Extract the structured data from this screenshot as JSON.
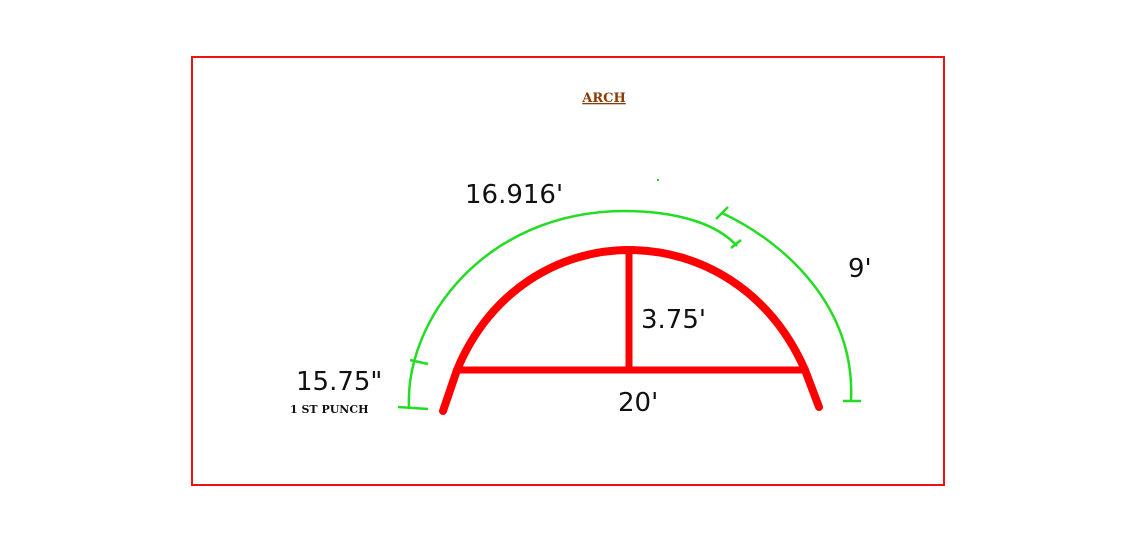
{
  "title": "ARCH",
  "labels": {
    "arc_length": "16.916'",
    "segment_length": "9'",
    "rise": "3.75'",
    "span": "20'",
    "first_punch_distance": "15.75\"",
    "first_punch_label": "1 ST PUNCH"
  },
  "colors": {
    "frame": "#ee1111",
    "arch": "#ff0000",
    "dimension_lines": "#22dd22",
    "title": "#8b3a00",
    "text": "#111111"
  }
}
